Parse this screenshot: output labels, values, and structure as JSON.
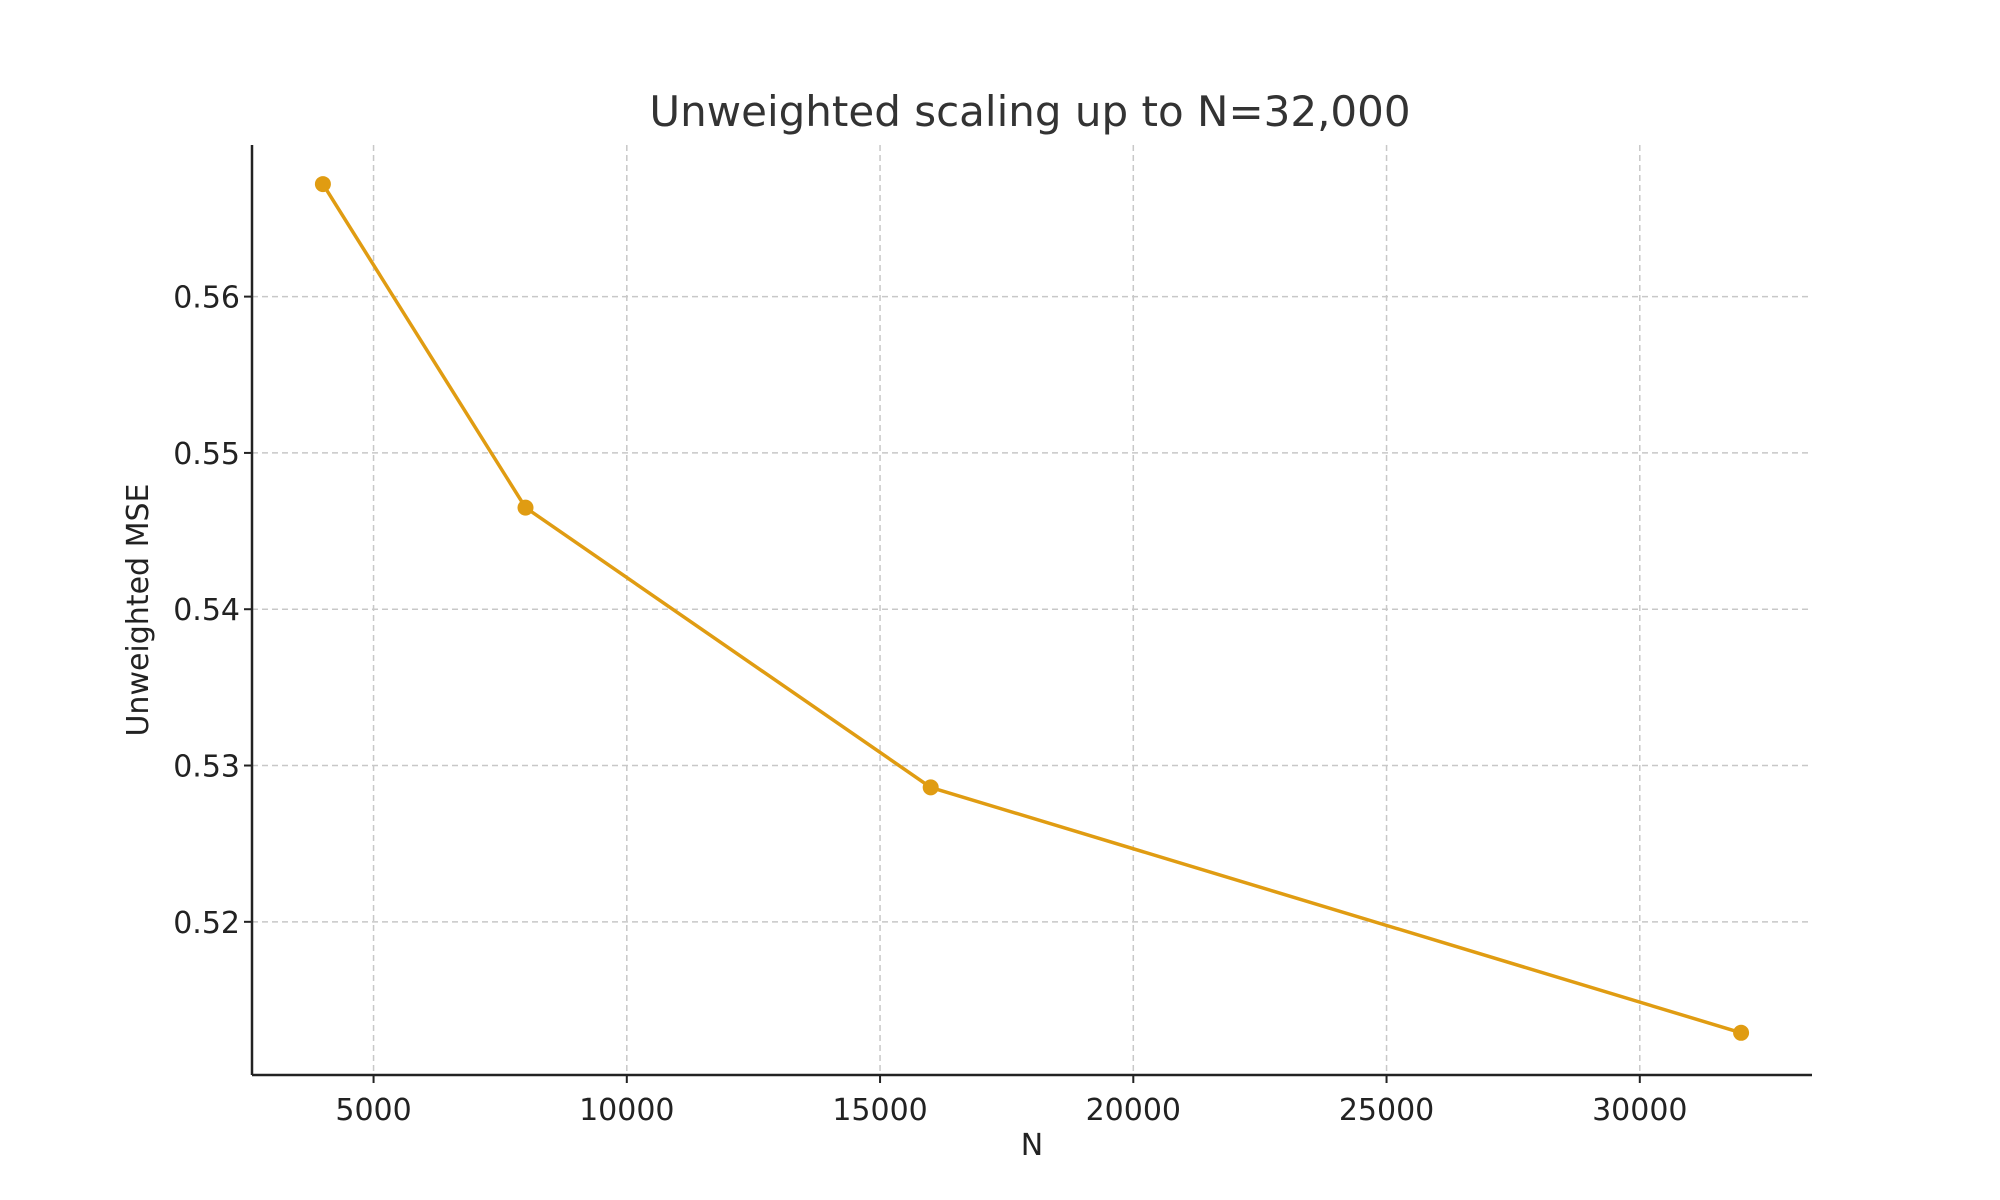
{
  "chart_data": {
    "type": "line",
    "title": "Unweighted scaling up to N=32,000",
    "xlabel": "N",
    "ylabel": "Unweighted MSE",
    "x_ticks": [
      5000,
      10000,
      15000,
      20000,
      25000,
      30000
    ],
    "y_ticks": [
      0.52,
      0.53,
      0.54,
      0.55,
      0.56
    ],
    "y_tick_labels": [
      "0.52",
      "0.53",
      "0.54",
      "0.55",
      "0.56"
    ],
    "xlim": [
      2600,
      33400
    ],
    "ylim": [
      0.5102,
      0.5697
    ],
    "grid": true,
    "legend": "none",
    "series": [
      {
        "color": "#e09c12",
        "x": [
          4000,
          8000,
          16000,
          32000
        ],
        "y": [
          0.5672,
          0.5465,
          0.5286,
          0.5129
        ]
      }
    ]
  }
}
